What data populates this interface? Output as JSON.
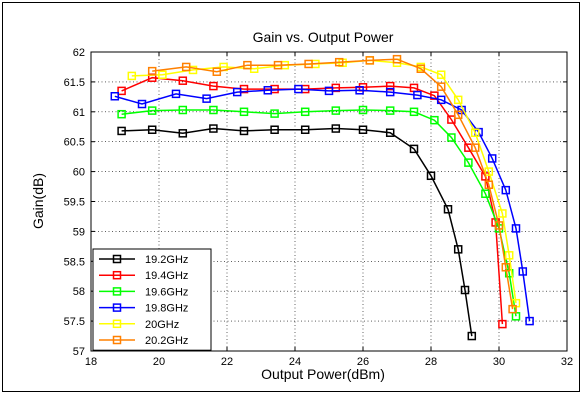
{
  "chart_data": {
    "type": "line",
    "title": "Gain vs. Output Power",
    "xlabel": "Output Power(dBm)",
    "ylabel": "Gain(dB)",
    "xlim": [
      18,
      32
    ],
    "ylim": [
      57,
      62
    ],
    "xticks": [
      18,
      20,
      22,
      24,
      26,
      28,
      30,
      32
    ],
    "yticks": [
      57,
      57.5,
      58,
      58.5,
      59,
      59.5,
      60,
      60.5,
      61,
      61.5,
      62
    ],
    "grid": true,
    "legend_position": "bottom-left",
    "marker": "square",
    "series": [
      {
        "name": "19.2GHz",
        "color": "#000000",
        "x": [
          18.9,
          19.8,
          20.7,
          21.6,
          22.5,
          23.4,
          24.3,
          25.2,
          26.0,
          26.8,
          27.5,
          28.0,
          28.5,
          28.8,
          29.0,
          29.2
        ],
        "y": [
          60.68,
          60.7,
          60.64,
          60.72,
          60.68,
          60.7,
          60.7,
          60.72,
          60.7,
          60.65,
          60.38,
          59.93,
          59.37,
          58.7,
          58.02,
          57.25
        ]
      },
      {
        "name": "19.4GHz",
        "color": "#ff0000",
        "x": [
          18.9,
          19.8,
          20.7,
          21.6,
          22.5,
          23.4,
          24.3,
          25.2,
          26.0,
          26.8,
          27.5,
          28.1,
          28.6,
          29.1,
          29.6,
          29.9,
          30.1
        ],
        "y": [
          61.35,
          61.57,
          61.52,
          61.43,
          61.38,
          61.38,
          61.38,
          61.4,
          61.41,
          61.43,
          61.4,
          61.27,
          60.87,
          60.4,
          59.92,
          59.15,
          57.45
        ]
      },
      {
        "name": "19.6GHz",
        "color": "#00ff00",
        "x": [
          18.9,
          19.8,
          20.7,
          21.6,
          22.5,
          23.4,
          24.3,
          25.2,
          26.0,
          26.8,
          27.5,
          28.1,
          28.6,
          29.1,
          29.6,
          30.0,
          30.3,
          30.5
        ],
        "y": [
          60.96,
          61.02,
          61.03,
          61.03,
          61.0,
          60.97,
          61.0,
          61.02,
          61.03,
          61.02,
          61.0,
          60.86,
          60.57,
          60.15,
          59.63,
          59.05,
          58.3,
          57.58
        ]
      },
      {
        "name": "19.8GHz",
        "color": "#0000ff",
        "x": [
          18.7,
          19.5,
          20.5,
          21.4,
          22.3,
          23.2,
          24.1,
          25.0,
          25.9,
          26.8,
          27.6,
          28.3,
          28.9,
          29.4,
          29.8,
          30.2,
          30.5,
          30.7,
          30.9
        ],
        "y": [
          61.26,
          61.13,
          61.3,
          61.22,
          61.33,
          61.36,
          61.38,
          61.35,
          61.36,
          61.33,
          61.28,
          61.2,
          61.03,
          60.66,
          60.22,
          59.69,
          59.05,
          58.33,
          57.5
        ]
      },
      {
        "name": "20GHz",
        "color": "#ffff00",
        "x": [
          19.2,
          20.1,
          21.0,
          21.9,
          22.8,
          23.7,
          24.6,
          25.4,
          26.2,
          27.0,
          27.7,
          28.3,
          28.8,
          29.3,
          29.7,
          30.1,
          30.3,
          30.5
        ],
        "y": [
          61.6,
          61.62,
          61.7,
          61.75,
          61.72,
          61.78,
          61.8,
          61.82,
          61.86,
          61.82,
          61.75,
          61.62,
          61.2,
          60.65,
          60.0,
          59.3,
          58.6,
          57.8
        ]
      },
      {
        "name": "20.2GHz",
        "color": "#ff8000",
        "x": [
          19.8,
          20.8,
          21.7,
          22.6,
          23.5,
          24.4,
          25.3,
          26.2,
          27.0,
          27.7,
          28.3,
          28.8,
          29.3,
          29.7,
          30.0,
          30.2,
          30.4
        ],
        "y": [
          61.68,
          61.75,
          61.67,
          61.78,
          61.78,
          61.8,
          61.83,
          61.86,
          61.88,
          61.72,
          61.42,
          60.95,
          60.4,
          59.78,
          59.1,
          58.4,
          57.7
        ]
      }
    ]
  }
}
